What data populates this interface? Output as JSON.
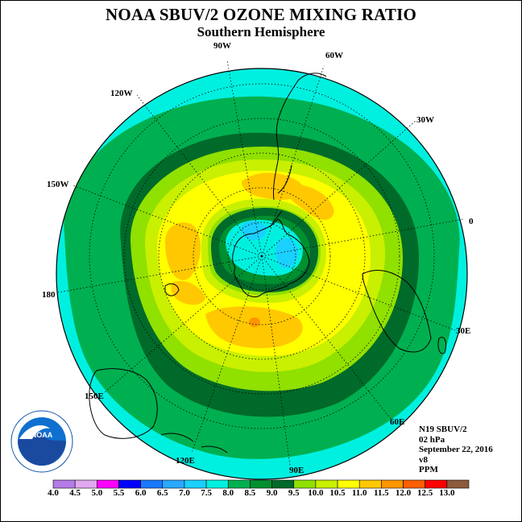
{
  "title": "NOAA SBUV/2 OZONE MIXING RATIO",
  "subtitle": "Southern Hemisphere",
  "longitude_labels": [
    "90W",
    "60W",
    "120W",
    "30W",
    "150W",
    "0",
    "180",
    "30E",
    "150E",
    "60E",
    "120E",
    "90E"
  ],
  "info": {
    "instrument": "N19 SBUV/2",
    "pressure": "02 hPa",
    "date": "September 22, 2016",
    "version": "v8",
    "units": "PPM"
  },
  "logo": {
    "text": "NOAA",
    "ring_text": "NATIONAL OCEANIC AND ATMOSPHERIC ADMINISTRATION · U.S. DEPARTMENT OF COMMERCE"
  },
  "colorbar": {
    "labels": [
      "4.0",
      "4.5",
      "5.0",
      "5.5",
      "6.0",
      "6.5",
      "7.0",
      "7.5",
      "8.0",
      "8.5",
      "9.0",
      "9.5",
      "10.0",
      "10.5",
      "11.0",
      "11.5",
      "12.0",
      "12.5",
      "13.0"
    ],
    "colors": [
      "#b47ce8",
      "#e0a8f0",
      "#ff00ff",
      "#0000ff",
      "#1a78ff",
      "#2aa8ff",
      "#1ad0ff",
      "#00f0e0",
      "#00b050",
      "#009030",
      "#006a2a",
      "#90e000",
      "#c8f000",
      "#ffff00",
      "#ffc800",
      "#ff9600",
      "#ff6000",
      "#ff0000",
      "#8c5a3c"
    ]
  }
}
